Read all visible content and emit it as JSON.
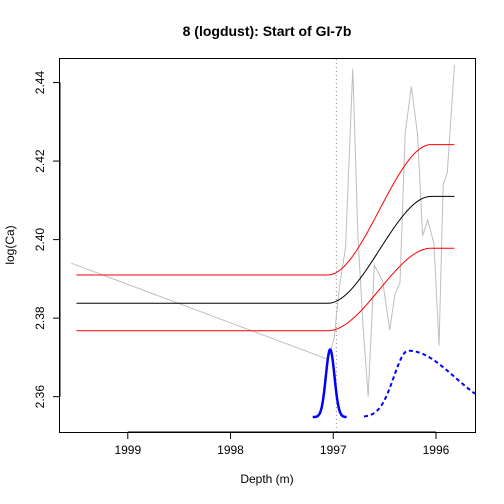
{
  "chart_data": {
    "type": "line",
    "title": "8 (logdust): Start of GI-7b",
    "xlabel": "Depth (m)",
    "ylabel": "log(Ca)",
    "xlim": [
      1999.66,
      1995.62
    ],
    "ylim": [
      2.351,
      2.446
    ],
    "x_reversed": true,
    "grid": false,
    "legend": "none",
    "x_ticks": [
      {
        "value": 1999,
        "label": "1999"
      },
      {
        "value": 1998,
        "label": "1998"
      },
      {
        "value": 1997,
        "label": "1997"
      },
      {
        "value": 1996,
        "label": "1996"
      }
    ],
    "y_ticks": [
      {
        "value": 2.36,
        "label": "2.36"
      },
      {
        "value": 2.38,
        "label": "2.38"
      },
      {
        "value": 2.4,
        "label": "2.40"
      },
      {
        "value": 2.42,
        "label": "2.42"
      },
      {
        "value": 2.44,
        "label": "2.44"
      }
    ],
    "vline": {
      "x": 1996.97,
      "color": "#888888",
      "style": "dotted"
    },
    "ramp": {
      "x_start": 1999.5,
      "x_end": 1995.82,
      "onset": 1997.05,
      "end": 1996.05
    },
    "series": [
      {
        "color": "#bebebe",
        "style": "solid",
        "width": 1,
        "points": [
          [
            1999.55,
            2.394
          ],
          [
            1997.05,
            2.3695
          ],
          [
            1996.99,
            2.375
          ],
          [
            1996.94,
            2.388
          ],
          [
            1996.88,
            2.398
          ],
          [
            1996.81,
            2.4435
          ],
          [
            1996.76,
            2.401
          ],
          [
            1996.71,
            2.378
          ],
          [
            1996.66,
            2.36
          ],
          [
            1996.6,
            2.3935
          ],
          [
            1996.52,
            2.3895
          ],
          [
            1996.45,
            2.377
          ],
          [
            1996.4,
            2.386
          ],
          [
            1996.35,
            2.389
          ],
          [
            1996.3,
            2.427
          ],
          [
            1996.24,
            2.439
          ],
          [
            1996.18,
            2.427
          ],
          [
            1996.13,
            2.401
          ],
          [
            1996.08,
            2.405
          ],
          [
            1996.02,
            2.399
          ],
          [
            1995.97,
            2.373
          ],
          [
            1995.93,
            2.414
          ],
          [
            1995.89,
            2.417
          ],
          [
            1995.82,
            2.4445
          ]
        ]
      },
      {
        "color": "#000000",
        "style": "solid",
        "width": 1,
        "ramp_from": 2.3838,
        "ramp_to": 2.411
      },
      {
        "color": "#ff0000",
        "style": "solid",
        "width": 1,
        "ramp_from": 2.391,
        "ramp_to": 2.4242
      },
      {
        "color": "#ff0000",
        "style": "solid",
        "width": 1,
        "ramp_from": 2.3768,
        "ramp_to": 2.3978
      }
    ],
    "densities": [
      {
        "color": "#0000ff",
        "style": "solid",
        "width": 2.5,
        "center": 1997.03,
        "sd": 0.042,
        "x_from": 1997.2,
        "x_to": 1996.87,
        "base": 2.3548,
        "peak": 2.372
      },
      {
        "color": "#0000ff",
        "style": "dashed",
        "width": 2,
        "mode": 1996.27,
        "sd_left": 0.14,
        "sd_right": 0.45,
        "x_from": 1996.7,
        "x_to": 1995.62,
        "base": 2.3548,
        "peak": 2.3717
      }
    ]
  }
}
